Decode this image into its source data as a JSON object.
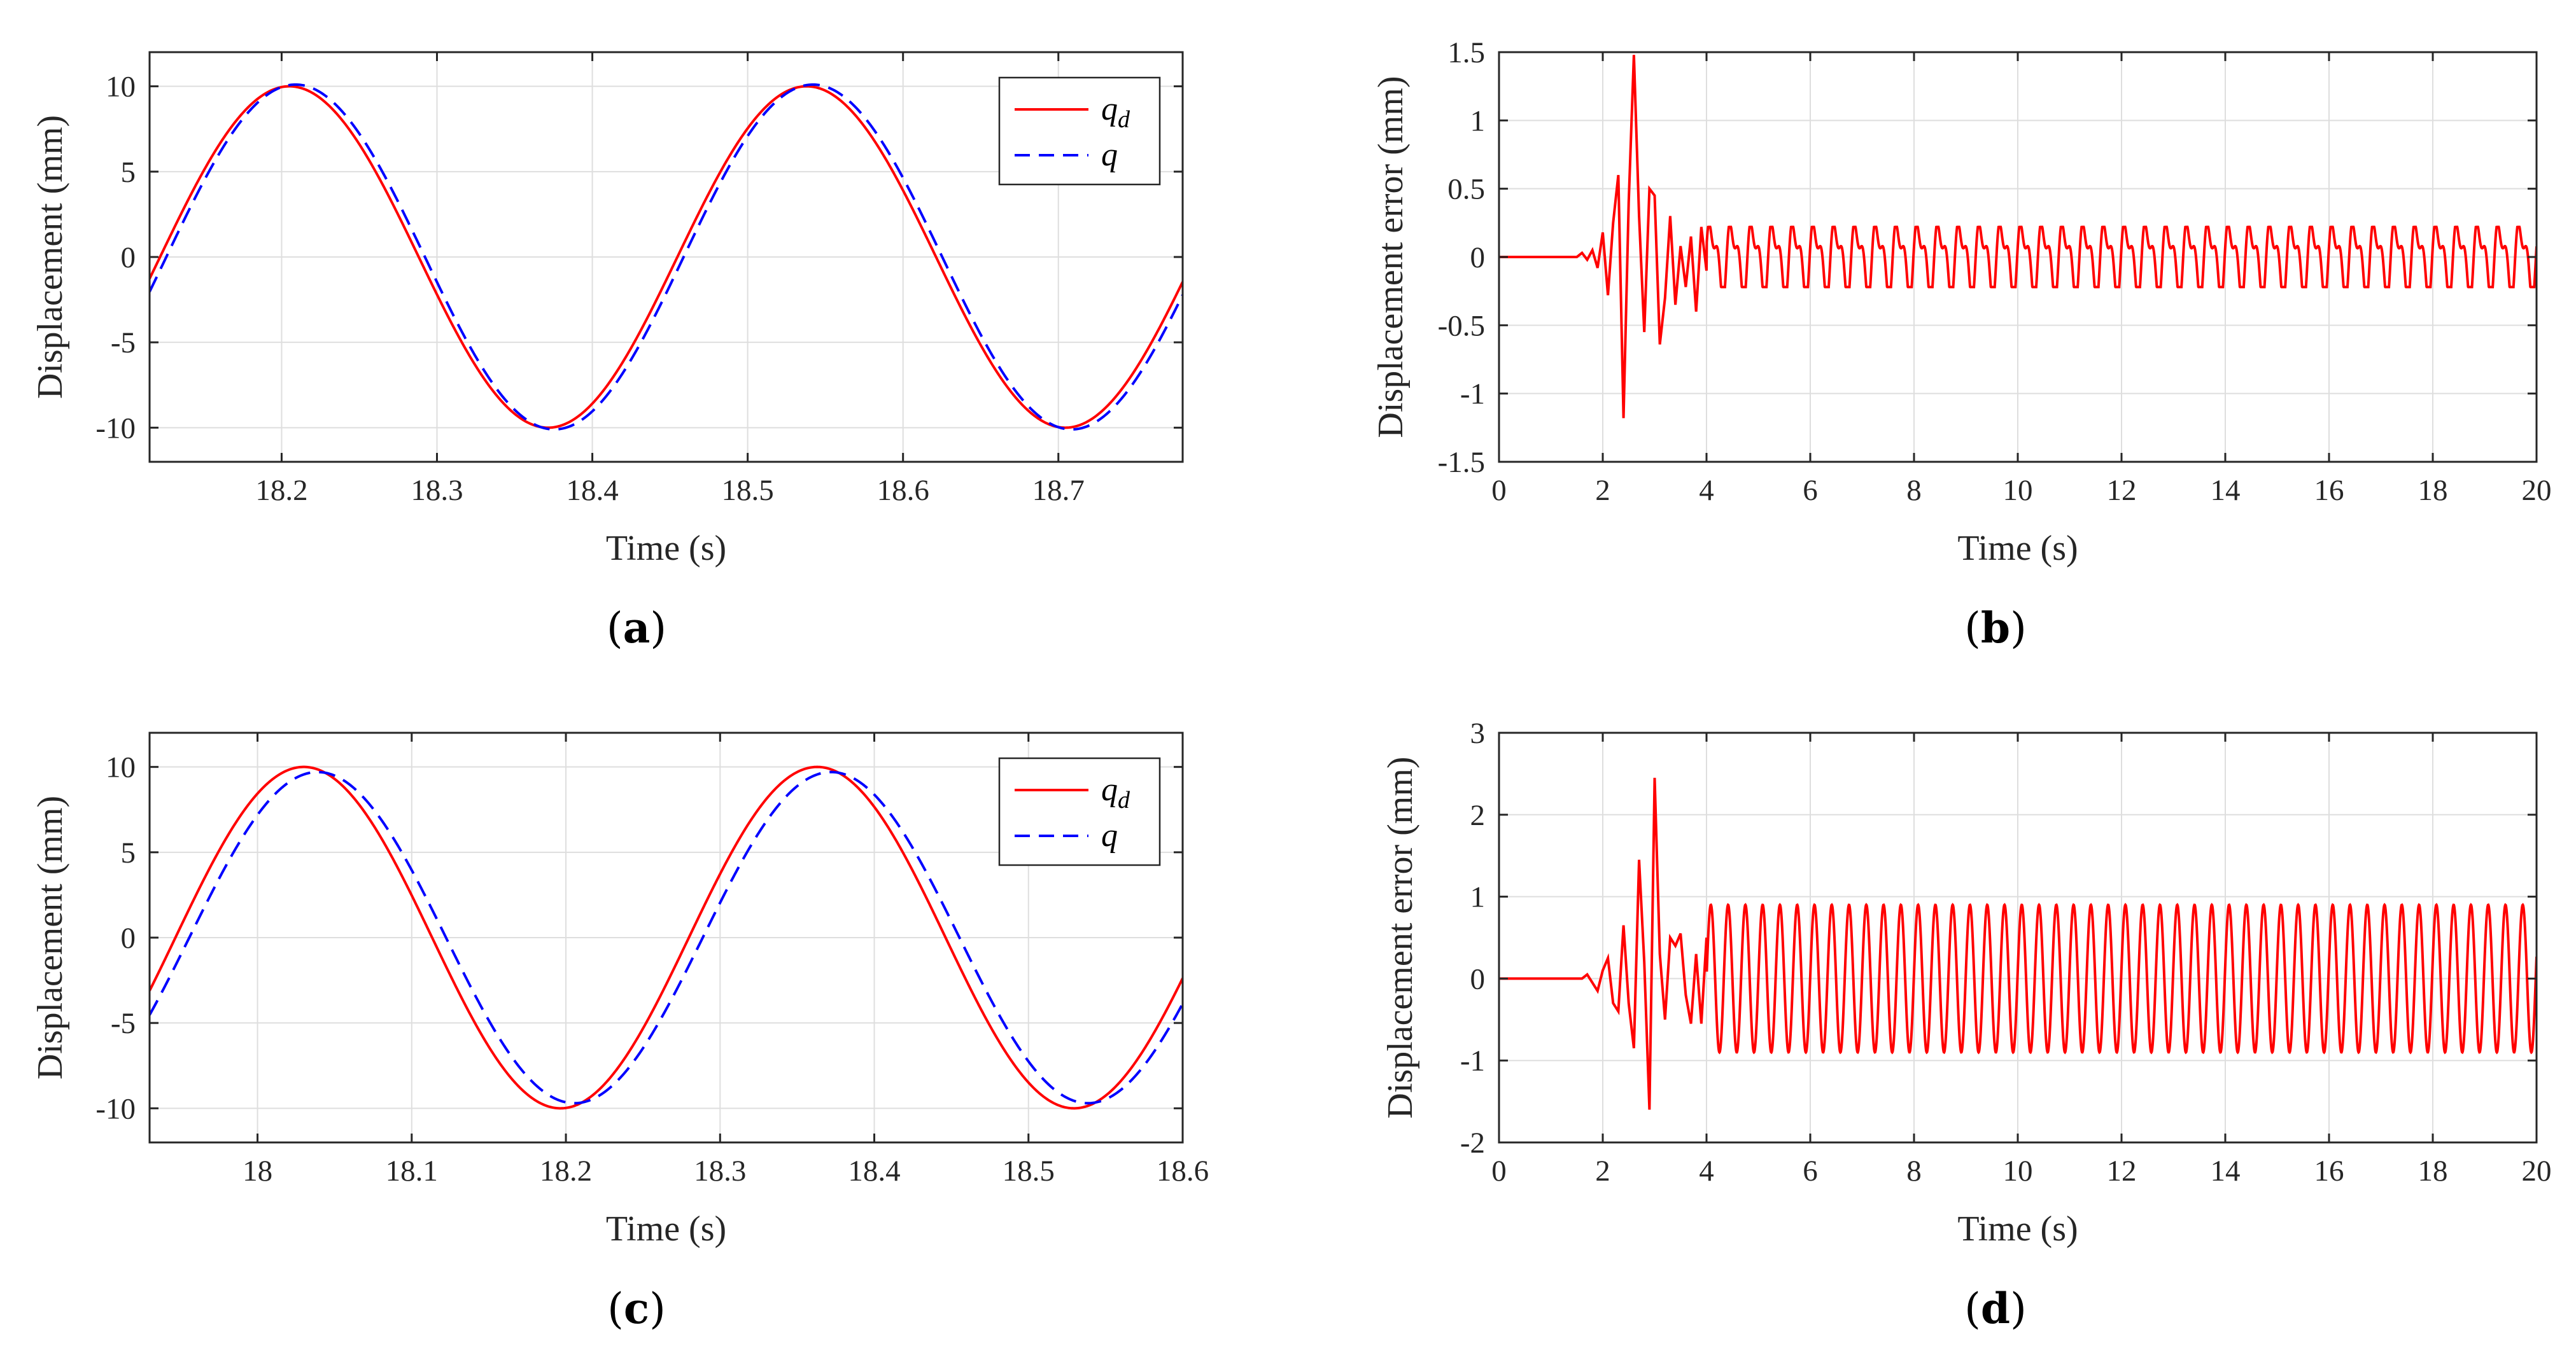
{
  "chart_data": [
    {
      "id": "a",
      "type": "line",
      "panel_label": "(a)",
      "panel_letter": "a",
      "xlabel": "Time (s)",
      "ylabel": "Displacement (mm)",
      "xlim": [
        18.115,
        18.78
      ],
      "ylim": [
        -12,
        12
      ],
      "xticks": [
        18.2,
        18.3,
        18.4,
        18.5,
        18.6,
        18.7
      ],
      "xtick_labels": [
        "18.2",
        "18.3",
        "18.4",
        "18.5",
        "18.6",
        "18.7"
      ],
      "yticks": [
        10,
        5,
        0,
        -5,
        -10
      ],
      "ytick_labels": [
        "10",
        "5",
        "0",
        "-5",
        "-10"
      ],
      "grid": true,
      "legend": {
        "placement": "top-right",
        "entries": [
          {
            "base": "q",
            "sub": "d"
          },
          {
            "base": "q",
            "sub": ""
          }
        ]
      },
      "series": [
        {
          "name": "q_d",
          "style": "solid",
          "color": "#ff0000",
          "model": {
            "kind": "sine",
            "amplitude": 10,
            "peak": 18.205,
            "period": 0.333,
            "lag": 0,
            "amp_scale": 1.0
          }
        },
        {
          "name": "q",
          "style": "dashed",
          "color": "#0000ff",
          "model": {
            "kind": "sine",
            "amplitude": 10,
            "peak": 18.205,
            "period": 0.333,
            "lag": 0.004,
            "amp_scale": 1.01
          }
        }
      ]
    },
    {
      "id": "b",
      "type": "line",
      "panel_label": "(b)",
      "panel_letter": "b",
      "xlabel": "Time (s)",
      "ylabel": "Displacement error (mm)",
      "xlim": [
        0,
        20
      ],
      "ylim": [
        -1.5,
        1.5
      ],
      "xticks": [
        0,
        2,
        4,
        6,
        8,
        10,
        12,
        14,
        16,
        18,
        20
      ],
      "xtick_labels": [
        "0",
        "2",
        "4",
        "6",
        "8",
        "10",
        "12",
        "14",
        "16",
        "18",
        "20"
      ],
      "yticks": [
        1.5,
        1,
        0.5,
        0,
        -0.5,
        -1,
        -1.5
      ],
      "ytick_labels": [
        "1.5",
        "1",
        "0.5",
        "0",
        "-0.5",
        "-1",
        "-1.5"
      ],
      "grid": true,
      "series": [
        {
          "name": "error",
          "style": "solid",
          "color": "#ff0000",
          "keypoints": [
            [
              0,
              0
            ],
            [
              1.2,
              0
            ],
            [
              1.5,
              0.0
            ],
            [
              1.6,
              0.03
            ],
            [
              1.7,
              -0.02
            ],
            [
              1.8,
              0.05
            ],
            [
              1.9,
              -0.08
            ],
            [
              2.0,
              0.18
            ],
            [
              2.1,
              -0.28
            ],
            [
              2.2,
              0.25
            ],
            [
              2.3,
              0.6
            ],
            [
              2.4,
              -1.18
            ],
            [
              2.5,
              0.4
            ],
            [
              2.6,
              1.48
            ],
            [
              2.7,
              0.3
            ],
            [
              2.8,
              -0.55
            ],
            [
              2.9,
              0.5
            ],
            [
              3.0,
              0.45
            ],
            [
              3.1,
              -0.64
            ],
            [
              3.2,
              -0.3
            ],
            [
              3.3,
              0.3
            ],
            [
              3.4,
              -0.35
            ],
            [
              3.5,
              0.08
            ],
            [
              3.6,
              -0.22
            ],
            [
              3.7,
              0.15
            ],
            [
              3.8,
              -0.4
            ],
            [
              3.9,
              0.22
            ],
            [
              4.0,
              -0.1
            ]
          ],
          "steady": {
            "from": 4.0,
            "to": 20,
            "period": 0.4,
            "high": 0.22,
            "low": -0.22,
            "mid": 0.12
          }
        }
      ]
    },
    {
      "id": "c",
      "type": "line",
      "panel_label": "(c)",
      "panel_letter": "c",
      "xlabel": "Time (s)",
      "ylabel": "Displacement (mm)",
      "xlim": [
        17.93,
        18.6
      ],
      "ylim": [
        -12,
        12
      ],
      "xticks": [
        18.0,
        18.1,
        18.2,
        18.3,
        18.4,
        18.5,
        18.6
      ],
      "xtick_labels": [
        "18",
        "18.1",
        "18.2",
        "18.3",
        "18.4",
        "18.5",
        "18.6"
      ],
      "yticks": [
        10,
        5,
        0,
        -5,
        -10
      ],
      "ytick_labels": [
        "10",
        "5",
        "0",
        "-5",
        "-10"
      ],
      "grid": true,
      "legend": {
        "placement": "top-right",
        "entries": [
          {
            "base": "q",
            "sub": "d"
          },
          {
            "base": "q",
            "sub": ""
          }
        ]
      },
      "series": [
        {
          "name": "q_d",
          "style": "solid",
          "color": "#ff0000",
          "model": {
            "kind": "sine",
            "amplitude": 10,
            "peak": 18.03,
            "period": 0.333,
            "lag": 0,
            "amp_scale": 1.0
          }
        },
        {
          "name": "q",
          "style": "dashed",
          "color": "#0000ff",
          "model": {
            "kind": "sine",
            "amplitude": 10,
            "peak": 18.03,
            "period": 0.333,
            "lag": 0.009,
            "amp_scale": 0.97
          }
        }
      ]
    },
    {
      "id": "d",
      "type": "line",
      "panel_label": "(d)",
      "panel_letter": "d",
      "xlabel": "Time (s)",
      "ylabel": "Displacement error (mm)",
      "xlim": [
        0,
        20
      ],
      "ylim": [
        -2,
        3
      ],
      "xticks": [
        0,
        2,
        4,
        6,
        8,
        10,
        12,
        14,
        16,
        18,
        20
      ],
      "xtick_labels": [
        "0",
        "2",
        "4",
        "6",
        "8",
        "10",
        "12",
        "14",
        "16",
        "18",
        "20"
      ],
      "yticks": [
        3,
        2,
        1,
        0,
        -1,
        -2
      ],
      "ytick_labels": [
        "3",
        "2",
        "1",
        "0",
        "-1",
        "-2"
      ],
      "grid": true,
      "series": [
        {
          "name": "error",
          "style": "solid",
          "color": "#ff0000",
          "keypoints": [
            [
              0,
              0
            ],
            [
              1.4,
              0
            ],
            [
              1.6,
              0.0
            ],
            [
              1.7,
              0.05
            ],
            [
              1.8,
              -0.05
            ],
            [
              1.9,
              -0.15
            ],
            [
              2.0,
              0.1
            ],
            [
              2.1,
              0.25
            ],
            [
              2.2,
              -0.3
            ],
            [
              2.3,
              -0.4
            ],
            [
              2.4,
              0.65
            ],
            [
              2.5,
              -0.3
            ],
            [
              2.6,
              -0.85
            ],
            [
              2.7,
              1.45
            ],
            [
              2.8,
              0.2
            ],
            [
              2.9,
              -1.6
            ],
            [
              3.0,
              2.45
            ],
            [
              3.1,
              0.3
            ],
            [
              3.2,
              -0.5
            ],
            [
              3.3,
              0.5
            ],
            [
              3.4,
              0.4
            ],
            [
              3.5,
              0.55
            ],
            [
              3.6,
              -0.2
            ],
            [
              3.7,
              -0.55
            ],
            [
              3.8,
              0.3
            ],
            [
              3.9,
              -0.55
            ],
            [
              4.0,
              0.5
            ]
          ],
          "steady": {
            "from": 4.0,
            "to": 20,
            "period": 0.333,
            "high": 0.9,
            "low": -0.9,
            "mid": 0.0
          }
        }
      ]
    }
  ]
}
